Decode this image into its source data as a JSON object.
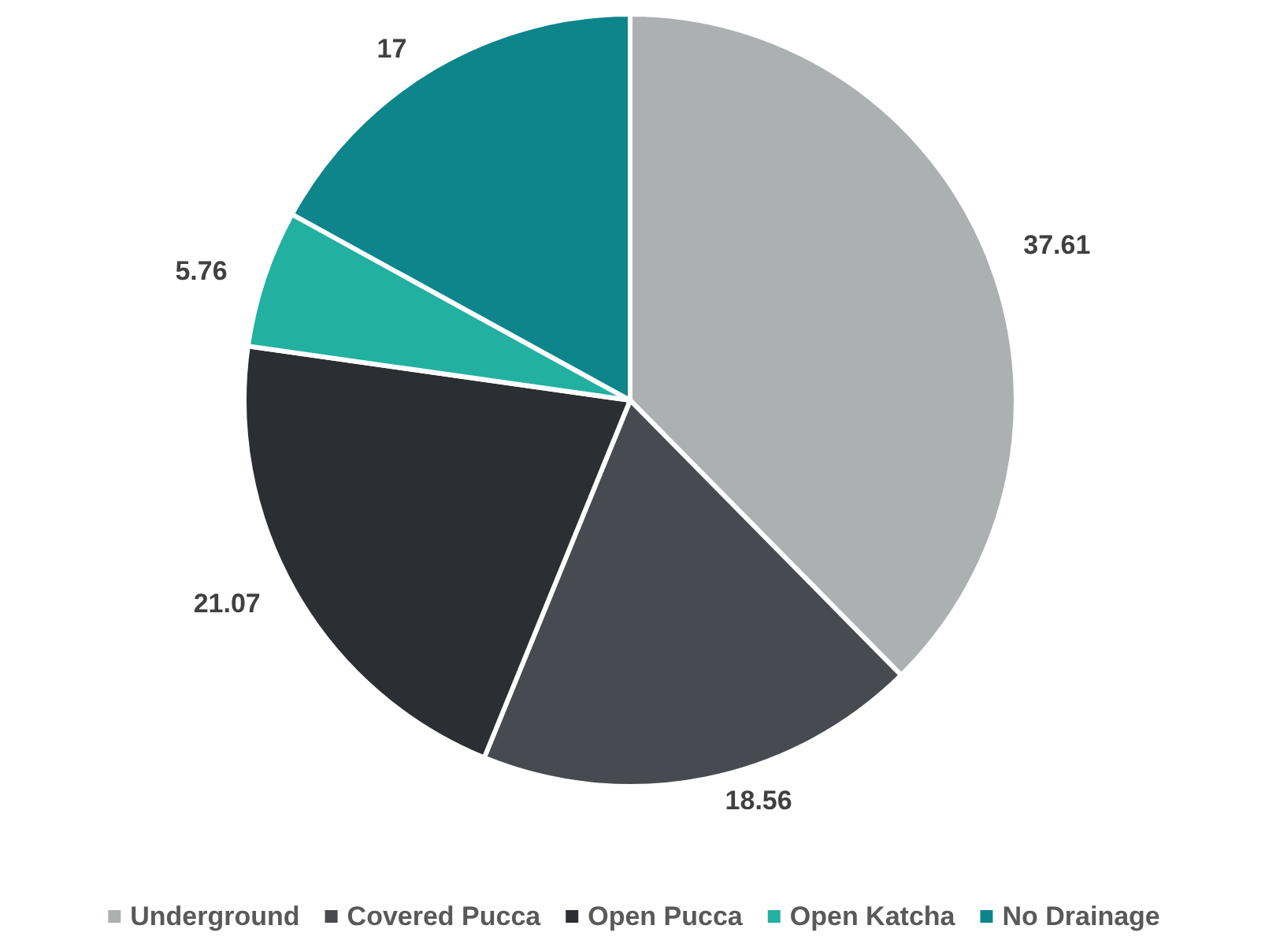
{
  "chart_data": {
    "type": "pie",
    "categories": [
      "Underground",
      "Covered Pucca",
      "Open Pucca",
      "Open Katcha",
      "No Drainage"
    ],
    "values": [
      37.61,
      18.56,
      21.07,
      5.76,
      17
    ],
    "colors": [
      "#adb0b1",
      "#474a50",
      "#2b2e33",
      "#22b0a0",
      "#0e848b"
    ],
    "data_labels": true,
    "legend": "bottom"
  }
}
